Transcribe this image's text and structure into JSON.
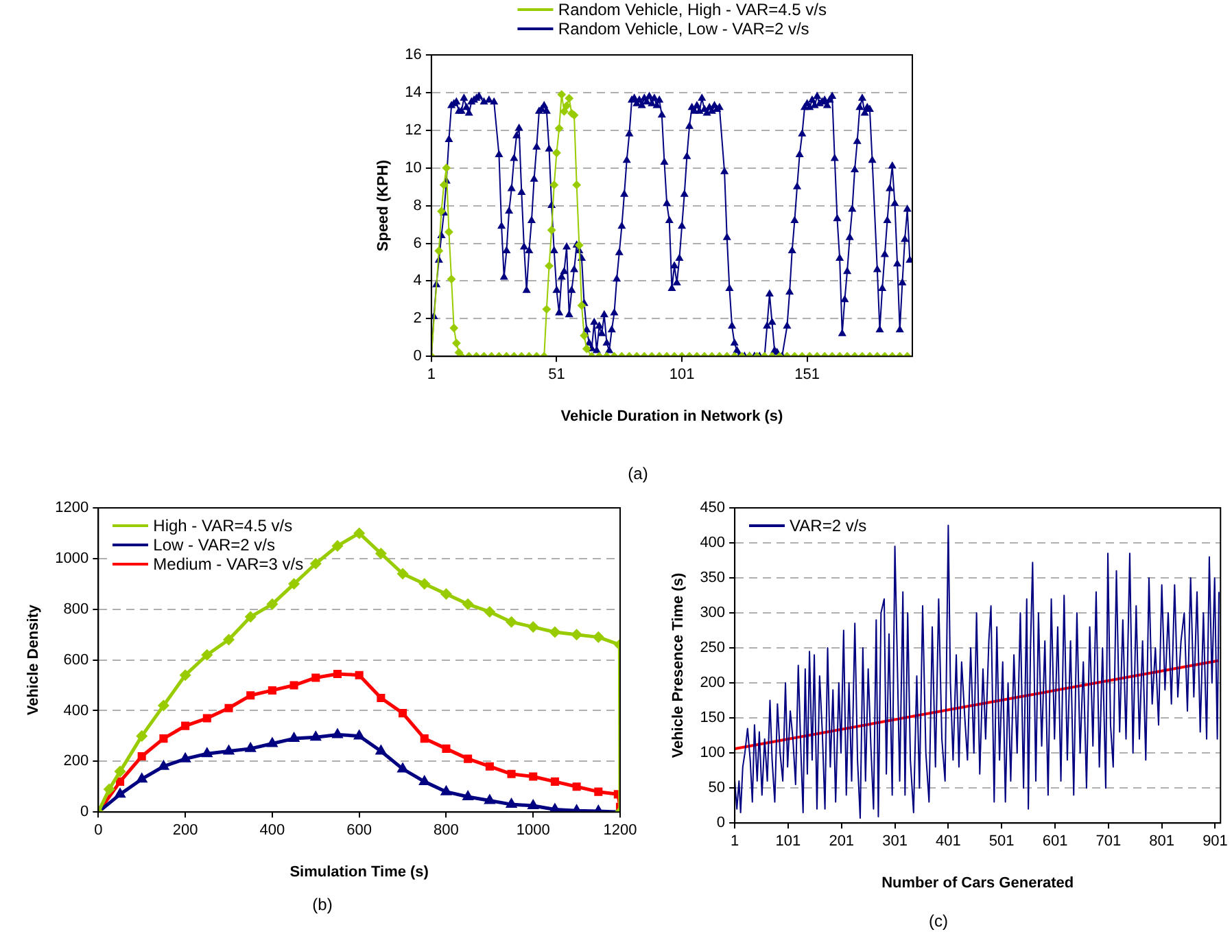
{
  "chart_data": [
    {
      "type": "line",
      "xlabel": "Vehicle Duration in Network (s)",
      "ylabel": "Speed (KPH)",
      "annotations": [
        "(a)"
      ],
      "xlim": [
        1,
        193
      ],
      "xticks": [
        1,
        51,
        101,
        151
      ],
      "ylim": [
        0,
        16
      ],
      "yticks": [
        0,
        2,
        4,
        6,
        8,
        10,
        12,
        14,
        16
      ],
      "grid": "y",
      "legend": "top",
      "series": [
        {
          "name": "Random Vehicle, High - VAR=4.5 v/s",
          "color": "#99cc00",
          "marker": "diamond",
          "x": [
            1,
            4,
            5,
            6,
            7,
            8,
            9,
            10,
            11,
            12,
            13,
            16,
            19,
            22,
            25,
            28,
            31,
            34,
            37,
            40,
            43,
            46,
            47,
            48,
            49,
            50,
            51,
            52,
            53,
            54,
            55,
            56,
            57,
            58,
            59,
            60,
            61,
            62,
            63,
            65,
            68,
            71,
            74,
            77,
            80,
            83,
            86,
            89,
            92,
            95,
            98,
            101,
            104,
            107,
            110,
            113,
            116,
            119,
            122,
            125,
            128,
            131,
            134,
            137,
            140,
            143,
            146,
            149,
            152,
            155,
            158,
            161,
            164,
            167,
            170,
            173,
            176,
            179,
            182,
            185,
            188,
            191
          ],
          "values": [
            0,
            5.6,
            7.7,
            9.1,
            10,
            6.6,
            4.1,
            1.5,
            0.7,
            0.2,
            0,
            0,
            0,
            0,
            0,
            0,
            0,
            0,
            0,
            0,
            0,
            0,
            2.5,
            4.8,
            6.7,
            9.1,
            10.8,
            12.1,
            13.9,
            13.0,
            13.3,
            13.7,
            12.9,
            12.8,
            9.1,
            5.9,
            2.7,
            1.1,
            0.4,
            0,
            0,
            0,
            0,
            0,
            0,
            0,
            0,
            0,
            0,
            0,
            0,
            0,
            0,
            0,
            0,
            0,
            0,
            0,
            0,
            0,
            0,
            0,
            0,
            0,
            0,
            0,
            0,
            0,
            0,
            0,
            0,
            0,
            0,
            0,
            0,
            0,
            0,
            0,
            0,
            0,
            0,
            0
          ]
        },
        {
          "name": "Random Vehicle, Low - VAR=2 v/s",
          "color": "#000080",
          "marker": "triangle",
          "x": [
            1,
            2,
            3,
            4,
            5,
            6,
            7,
            8,
            9,
            10,
            11,
            12,
            13,
            14,
            15,
            16,
            17,
            18,
            19,
            20,
            22,
            24,
            26,
            28,
            29,
            30,
            31,
            32,
            33,
            34,
            35,
            36,
            37,
            38,
            39,
            40,
            41,
            42,
            43,
            44,
            45,
            46,
            47,
            48,
            49,
            50,
            51,
            52,
            53,
            54,
            55,
            56,
            57,
            58,
            59,
            60,
            61,
            62,
            63,
            64,
            65,
            66,
            67,
            68,
            69,
            70,
            71,
            72,
            73,
            74,
            75,
            76,
            77,
            78,
            79,
            80,
            81,
            82,
            83,
            84,
            85,
            86,
            87,
            88,
            89,
            90,
            91,
            92,
            93,
            94,
            95,
            96,
            97,
            98,
            99,
            100,
            101,
            102,
            103,
            104,
            105,
            106,
            107,
            108,
            109,
            110,
            111,
            112,
            113,
            114,
            115,
            116,
            118,
            119,
            120,
            121,
            122,
            123,
            124,
            126,
            128,
            130,
            132,
            134,
            135,
            136,
            137,
            138,
            139,
            141,
            143,
            144,
            145,
            146,
            147,
            148,
            149,
            150,
            151,
            152,
            153,
            154,
            155,
            156,
            157,
            158,
            159,
            160,
            161,
            162,
            163,
            164,
            165,
            166,
            167,
            168,
            169,
            170,
            171,
            172,
            173,
            174,
            175,
            176,
            177,
            179,
            180,
            181,
            182,
            183,
            184,
            185,
            186,
            187,
            188,
            189,
            190,
            191,
            192
          ],
          "values": [
            0,
            2.1,
            3.8,
            5.1,
            6.4,
            7.6,
            9.3,
            11.5,
            13.3,
            13.4,
            13.5,
            13.0,
            13.0,
            13.7,
            13.2,
            12.9,
            13.5,
            13.6,
            13.7,
            13.8,
            13.5,
            13.6,
            13.5,
            10.7,
            6.9,
            4.2,
            5.6,
            7.7,
            8.9,
            10.5,
            11.7,
            12.1,
            8.7,
            5.8,
            3.5,
            5.6,
            7.2,
            9.4,
            11.1,
            13.0,
            13.1,
            13.3,
            13.0,
            11.0,
            8.0,
            5.6,
            3.5,
            2.3,
            4.2,
            4.5,
            5.8,
            2.2,
            3.5,
            4.6,
            5.9,
            5.6,
            5.2,
            2.8,
            1.4,
            0.7,
            0.4,
            1.8,
            0.3,
            1.6,
            1.2,
            2.2,
            0.7,
            0.3,
            1.4,
            2.3,
            4.1,
            5.5,
            6.9,
            8.6,
            10.4,
            11.8,
            13.6,
            13.7,
            13.4,
            13.6,
            13.3,
            13.7,
            13.5,
            13.8,
            13.4,
            13.7,
            13.3,
            13.6,
            12.8,
            10.3,
            8.1,
            7.2,
            3.6,
            4.8,
            3.9,
            5.2,
            6.9,
            8.6,
            10.6,
            12.2,
            13.2,
            13.0,
            13.3,
            13.0,
            13.7,
            13.1,
            12.9,
            13.2,
            13.0,
            13.3,
            13.1,
            13.2,
            9.8,
            6.3,
            3.6,
            1.6,
            0.7,
            0.3,
            0,
            0,
            0,
            0,
            0,
            0,
            1.6,
            3.3,
            1.8,
            0.3,
            0.2,
            0,
            1.6,
            3.4,
            5.6,
            7.2,
            9.0,
            10.7,
            11.8,
            13.2,
            13.4,
            13.2,
            13.6,
            13.3,
            13.8,
            13.4,
            13.5,
            13.6,
            13.3,
            13.6,
            13.8,
            10.5,
            7.3,
            5.2,
            1.2,
            3.0,
            4.5,
            6.3,
            7.8,
            9.9,
            11.4,
            13.2,
            13.7,
            12.9,
            13.2,
            13.1,
            10.4,
            4.6,
            1.4,
            3.6,
            5.4,
            7.2,
            8.9,
            10.1,
            8.1,
            4.9,
            1.4,
            3.9,
            6.2,
            7.8,
            5.1
          ]
        }
      ]
    },
    {
      "type": "line",
      "xlabel": "Simulation Time (s)",
      "ylabel": "Vehicle Density",
      "annotations": [
        "(b)"
      ],
      "xlim": [
        0,
        1200
      ],
      "xticks": [
        0,
        200,
        400,
        600,
        800,
        1000,
        1200
      ],
      "ylim": [
        0,
        1200
      ],
      "yticks": [
        0,
        200,
        400,
        600,
        800,
        1000,
        1200
      ],
      "grid": "y",
      "legend": "top left",
      "series": [
        {
          "name": "High - VAR=4.5 v/s",
          "color": "#99cc00",
          "marker": "diamond",
          "x": [
            0,
            25,
            50,
            100,
            150,
            200,
            250,
            300,
            350,
            400,
            450,
            500,
            550,
            600,
            650,
            700,
            750,
            800,
            850,
            900,
            950,
            1000,
            1050,
            1100,
            1150,
            1199,
            1200
          ],
          "values": [
            0,
            90,
            160,
            300,
            420,
            540,
            620,
            680,
            770,
            820,
            900,
            980,
            1050,
            1100,
            1020,
            940,
            900,
            860,
            820,
            790,
            750,
            730,
            710,
            700,
            690,
            660,
            0
          ]
        },
        {
          "name": "Low - VAR=2 v/s",
          "color": "#000080",
          "marker": "triangle",
          "x": [
            0,
            50,
            100,
            150,
            200,
            250,
            300,
            350,
            400,
            450,
            500,
            550,
            600,
            650,
            700,
            750,
            800,
            850,
            900,
            950,
            1000,
            1050,
            1100,
            1150,
            1200
          ],
          "values": [
            0,
            70,
            130,
            180,
            210,
            230,
            240,
            250,
            270,
            290,
            295,
            305,
            300,
            240,
            170,
            120,
            80,
            60,
            45,
            30,
            25,
            10,
            5,
            3,
            0
          ]
        },
        {
          "name": "Medium - VAR=3 v/s",
          "color": "#ff0000",
          "marker": "square",
          "x": [
            0,
            50,
            100,
            150,
            200,
            250,
            300,
            350,
            400,
            450,
            500,
            550,
            600,
            650,
            700,
            750,
            800,
            850,
            900,
            950,
            1000,
            1050,
            1100,
            1150,
            1195,
            1200
          ],
          "values": [
            0,
            120,
            220,
            290,
            340,
            370,
            410,
            460,
            480,
            500,
            530,
            545,
            540,
            450,
            390,
            290,
            250,
            210,
            180,
            150,
            140,
            120,
            100,
            80,
            70,
            20
          ]
        }
      ]
    },
    {
      "type": "line",
      "xlabel": "Number of Cars Generated",
      "ylabel": "Vehicle Presence Time (s)",
      "annotations": [
        "(c)"
      ],
      "xlim": [
        1,
        911
      ],
      "xticks": [
        1,
        101,
        201,
        301,
        401,
        501,
        601,
        701,
        801,
        901
      ],
      "ylim": [
        0,
        450
      ],
      "yticks": [
        0,
        50,
        100,
        150,
        200,
        250,
        300,
        350,
        400,
        450
      ],
      "grid": "y",
      "legend": "top left",
      "marker": "none",
      "series": [
        {
          "name": "VAR=2 v/s",
          "color": "#000080",
          "x": [
            1,
            5,
            9,
            12,
            16,
            20,
            25,
            30,
            34,
            38,
            43,
            47,
            52,
            57,
            62,
            67,
            71,
            76,
            81,
            86,
            91,
            96,
            100,
            105,
            110,
            115,
            120,
            125,
            129,
            133,
            137,
            141,
            146,
            150,
            155,
            160,
            165,
            170,
            175,
            180,
            185,
            190,
            196,
            200,
            205,
            210,
            215,
            220,
            226,
            231,
            236,
            241,
            246,
            251,
            256,
            261,
            266,
            270,
            275,
            281,
            285,
            290,
            296,
            301,
            305,
            310,
            316,
            320,
            325,
            330,
            336,
            342,
            347,
            353,
            359,
            365,
            371,
            377,
            383,
            389,
            395,
            401,
            405,
            410,
            416,
            421,
            426,
            432,
            437,
            443,
            449,
            454,
            460,
            466,
            471,
            477,
            481,
            487,
            492,
            497,
            503,
            508,
            513,
            518,
            524,
            530,
            536,
            542,
            548,
            551,
            555,
            559,
            565,
            570,
            576,
            582,
            588,
            594,
            600,
            606,
            612,
            618,
            624,
            630,
            636,
            642,
            648,
            654,
            660,
            666,
            672,
            678,
            684,
            690,
            696,
            700,
            705,
            710,
            716,
            722,
            728,
            734,
            741,
            747,
            753,
            759,
            765,
            771,
            777,
            783,
            789,
            795,
            801,
            807,
            813,
            819,
            825,
            831,
            837,
            843,
            849,
            855,
            861,
            867,
            873,
            879,
            885,
            890,
            895,
            900,
            905,
            908
          ],
          "values": [
            60,
            20,
            60,
            15,
            80,
            100,
            135,
            90,
            30,
            140,
            60,
            130,
            40,
            120,
            60,
            175,
            90,
            30,
            170,
            100,
            60,
            200,
            80,
            160,
            120,
            55,
            225,
            100,
            15,
            220,
            70,
            245,
            90,
            240,
            20,
            210,
            130,
            20,
            250,
            80,
            190,
            30,
            200,
            100,
            275,
            40,
            200,
            60,
            285,
            90,
            7,
            250,
            60,
            220,
            110,
            20,
            290,
            9,
            300,
            320,
            70,
            270,
            40,
            395,
            250,
            60,
            330,
            40,
            300,
            90,
            15,
            210,
            50,
            310,
            100,
            30,
            280,
            80,
            320,
            120,
            60,
            425,
            200,
            90,
            240,
            80,
            230,
            150,
            90,
            250,
            100,
            300,
            70,
            220,
            120,
            260,
            310,
            30,
            280,
            90,
            230,
            30,
            200,
            60,
            240,
            100,
            300,
            50,
            320,
            20,
            250,
            372,
            60,
            300,
            110,
            260,
            40,
            320,
            120,
            280,
            60,
            325,
            90,
            260,
            40,
            300,
            100,
            230,
            50,
            280,
            110,
            330,
            80,
            250,
            50,
            385,
            140,
            80,
            360,
            130,
            290,
            120,
            385,
            100,
            310,
            120,
            260,
            90,
            350,
            170,
            250,
            140,
            340,
            190,
            300,
            170,
            340,
            180,
            260,
            300,
            160,
            350,
            180,
            330,
            130,
            300,
            120,
            380,
            200,
            350,
            120,
            330
          ]
        },
        {
          "type": "line",
          "color": "#ff0000",
          "x": [
            1,
            908
          ],
          "values": [
            106,
            232
          ]
        }
      ]
    }
  ]
}
